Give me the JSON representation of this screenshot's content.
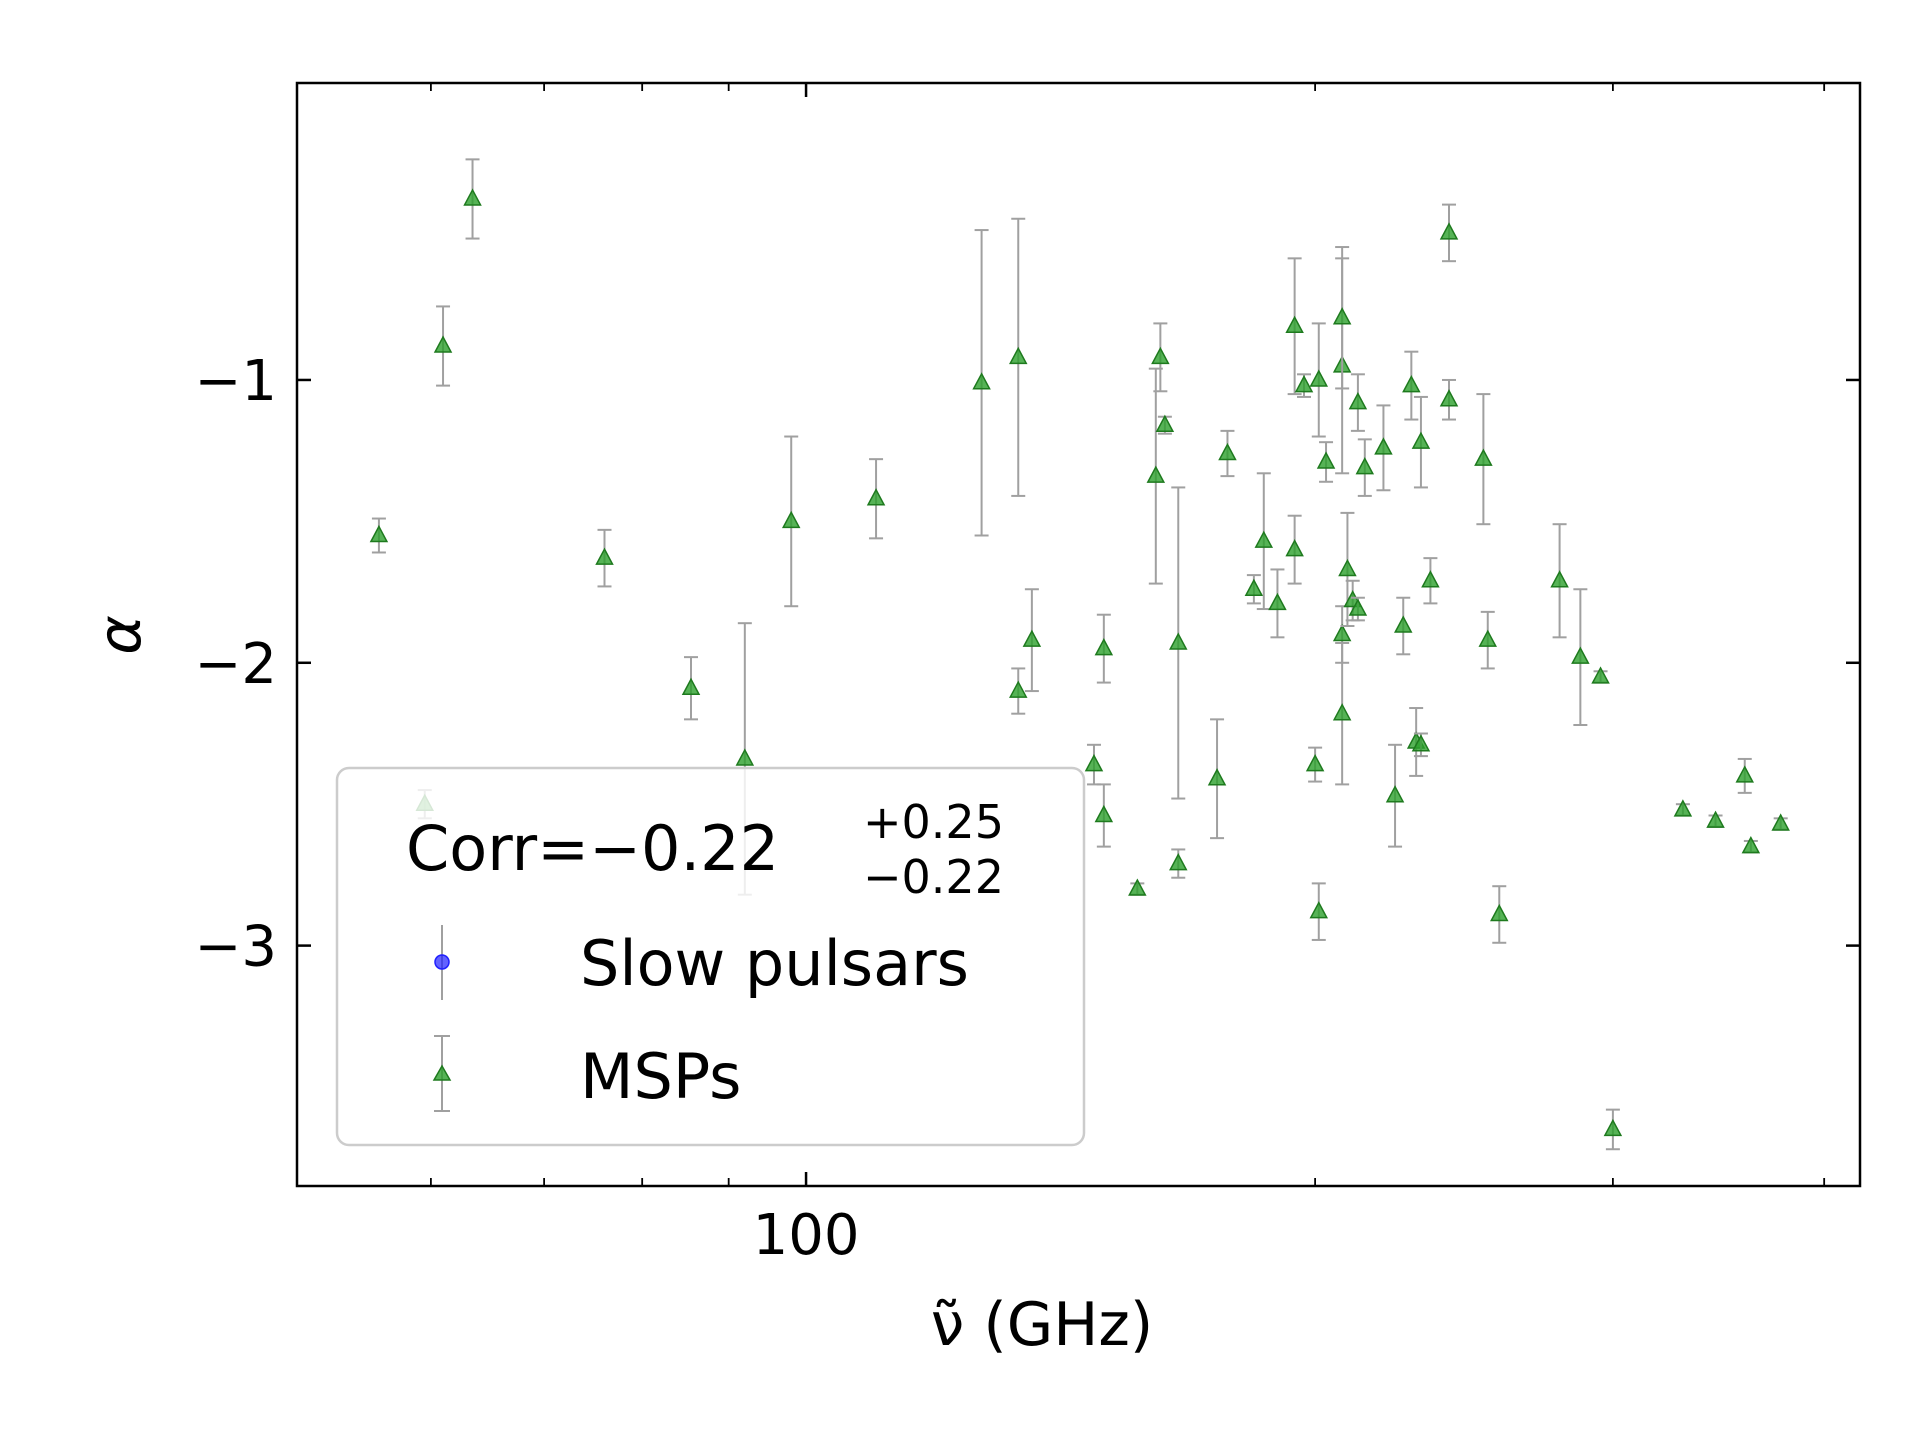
{
  "chart_data": {
    "type": "scatter",
    "xscale": "log",
    "xlim": [
      50,
      420
    ],
    "ylim": [
      -3.85,
      0.05
    ],
    "xlabel": "ν̃ (GHz)",
    "ylabel": "α",
    "xticks": [
      {
        "value": 100,
        "label": "100"
      }
    ],
    "xticks_minor": [
      50,
      60,
      70,
      80,
      90,
      200,
      300,
      400
    ],
    "yticks": [
      {
        "value": -1,
        "label": "−1"
      },
      {
        "value": -2,
        "label": "−2"
      },
      {
        "value": -3,
        "label": "−3"
      }
    ],
    "grid": false,
    "legend": {
      "placement": "lower-left",
      "title": "Corr=−0.22",
      "title_sup": "+0.25",
      "title_sub": "−0.22",
      "entries": [
        {
          "name": "Slow pulsars",
          "marker": "circle",
          "color": "#1f1fff"
        },
        {
          "name": "MSPs",
          "marker": "triangle",
          "color": "#2ca02c"
        }
      ]
    },
    "series": [
      {
        "name": "Slow pulsars",
        "marker": "circle",
        "color": "#1f1fff",
        "points": []
      },
      {
        "name": "MSPs",
        "marker": "triangle",
        "color": "#2ca02c",
        "errcolor": "#a0a0a0",
        "points": [
          [
            55.9,
            -1.55,
            0.06
          ],
          [
            59.5,
            -2.5,
            0.05
          ],
          [
            61.0,
            -0.88,
            0.14
          ],
          [
            63.5,
            -0.36,
            0.14
          ],
          [
            76.0,
            -1.63,
            0.1
          ],
          [
            85.5,
            -2.09,
            0.11
          ],
          [
            92.0,
            -2.34,
            0.48
          ],
          [
            98.0,
            -1.5,
            0.3
          ],
          [
            110.0,
            -1.42,
            0.14
          ],
          [
            127.0,
            -1.01,
            0.54
          ],
          [
            133.5,
            -0.92,
            0.49
          ],
          [
            133.5,
            -2.1,
            0.08
          ],
          [
            136.0,
            -1.92,
            0.18
          ],
          [
            148.0,
            -2.36,
            0.07
          ],
          [
            150.0,
            -1.95,
            0.12
          ],
          [
            150.0,
            -2.54,
            0.11
          ],
          [
            157.0,
            -2.8,
            0.02
          ],
          [
            161.0,
            -1.34,
            0.38
          ],
          [
            162.0,
            -0.92,
            0.12
          ],
          [
            163.0,
            -1.16,
            0.03
          ],
          [
            166.0,
            -2.71,
            0.05
          ],
          [
            166.0,
            -1.93,
            0.55
          ],
          [
            175.0,
            -2.41,
            0.21
          ],
          [
            177.5,
            -1.26,
            0.08
          ],
          [
            184.0,
            -1.74,
            0.05
          ],
          [
            186.5,
            -1.57,
            0.24
          ],
          [
            190.0,
            -1.79,
            0.12
          ],
          [
            194.5,
            -0.81,
            0.24
          ],
          [
            194.5,
            -1.6,
            0.12
          ],
          [
            197.0,
            -1.02,
            0.04
          ],
          [
            200.0,
            -2.36,
            0.06
          ],
          [
            201.0,
            -1.0,
            0.2
          ],
          [
            201.0,
            -2.88,
            0.1
          ],
          [
            203.0,
            -1.29,
            0.07
          ],
          [
            207.5,
            -1.9,
            0.1
          ],
          [
            207.5,
            -0.95,
            0.38
          ],
          [
            207.5,
            -0.78,
            0.25
          ],
          [
            207.5,
            -2.18,
            0.25
          ],
          [
            209.0,
            -1.67,
            0.2
          ],
          [
            210.5,
            -1.78,
            0.07
          ],
          [
            212.0,
            -1.08,
            0.1
          ],
          [
            212.0,
            -1.81,
            0.04
          ],
          [
            214.0,
            -1.31,
            0.1
          ],
          [
            219.5,
            -1.24,
            0.15
          ],
          [
            223.0,
            -2.47,
            0.18
          ],
          [
            225.5,
            -1.87,
            0.1
          ],
          [
            228.0,
            -1.02,
            0.12
          ],
          [
            229.5,
            -2.28,
            0.12
          ],
          [
            231.0,
            -2.29,
            0.04
          ],
          [
            231.0,
            -1.22,
            0.16
          ],
          [
            234.0,
            -1.71,
            0.08
          ],
          [
            240.0,
            -0.48,
            0.1
          ],
          [
            240.0,
            -1.07,
            0.07
          ],
          [
            251.5,
            -1.28,
            0.23
          ],
          [
            253.0,
            -1.92,
            0.1
          ],
          [
            257.0,
            -2.89,
            0.1
          ],
          [
            279.0,
            -1.71,
            0.2
          ],
          [
            287.0,
            -1.98,
            0.24
          ],
          [
            295.0,
            -2.05,
            0.02
          ],
          [
            300.0,
            -3.65,
            0.07
          ],
          [
            330.0,
            -2.52,
            0.02
          ],
          [
            345.0,
            -2.56,
            0.02
          ],
          [
            359.0,
            -2.4,
            0.06
          ],
          [
            362.0,
            -2.65,
            0.02
          ],
          [
            377.0,
            -2.57,
            0.02
          ]
        ]
      }
    ]
  }
}
